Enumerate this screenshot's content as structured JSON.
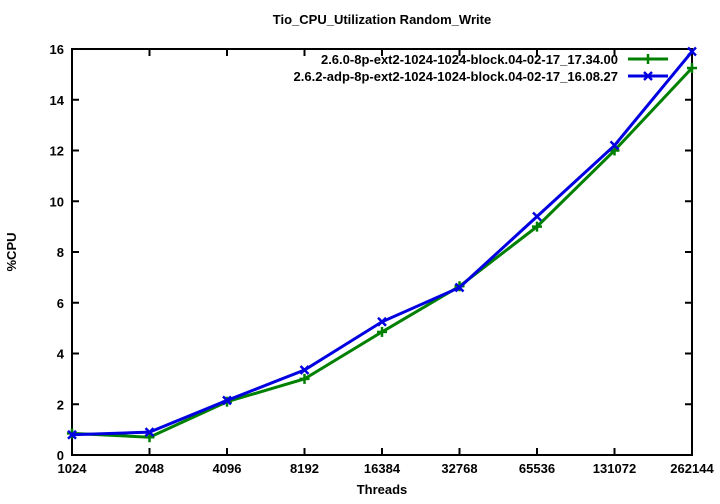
{
  "chart_data": {
    "type": "line",
    "title": "Tio_CPU_Utilization Random_Write",
    "xlabel": "Threads",
    "ylabel": "%CPU",
    "x_tick_labels": [
      "1024",
      "2048",
      "4096",
      "8192",
      "16384",
      "32768",
      "65536",
      "131072",
      "262144"
    ],
    "y_ticks": [
      0,
      2,
      4,
      6,
      8,
      10,
      12,
      14,
      16
    ],
    "ylim": [
      0,
      16
    ],
    "x_scale": "log2-categorical-even-spacing",
    "grid": false,
    "legend_position": "top-right-inside",
    "series": [
      {
        "name": "2.6.0-8p-ext2-1024-1024-block.04-02-17_17.34.00",
        "color": "#008000",
        "marker": "plus",
        "values": [
          0.85,
          0.7,
          2.1,
          3.0,
          4.85,
          6.65,
          9.0,
          12.0,
          15.25
        ]
      },
      {
        "name": "2.6.2-adp-8p-ext2-1024-1024-block.04-02-17_16.08.27",
        "color": "#0000e0",
        "marker": "x",
        "values": [
          0.8,
          0.9,
          2.15,
          3.35,
          5.25,
          6.6,
          9.4,
          12.2,
          15.9
        ]
      }
    ],
    "colors": {
      "axis": "#000000",
      "background": "#ffffff",
      "text": "#000000"
    }
  }
}
